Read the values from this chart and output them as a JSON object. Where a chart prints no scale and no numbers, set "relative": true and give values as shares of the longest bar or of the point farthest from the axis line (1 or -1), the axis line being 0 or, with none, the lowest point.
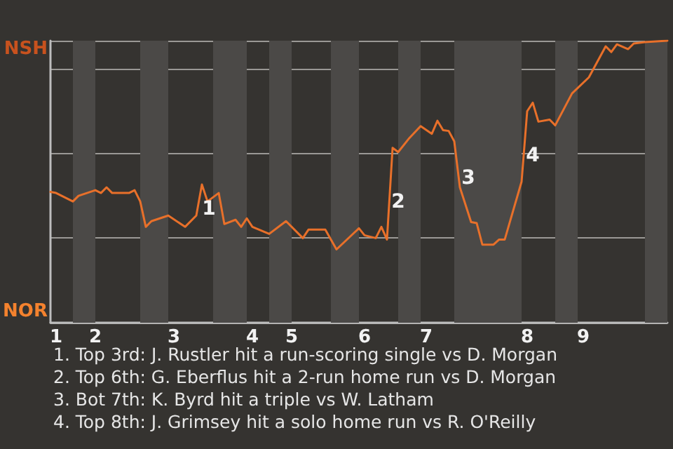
{
  "chart_data": {
    "type": "line",
    "color": "#e8702a",
    "relative": true,
    "categories": [
      null,
      "1",
      null,
      null,
      null,
      null,
      null,
      null,
      "2",
      null,
      null,
      null,
      null,
      null,
      null,
      null,
      null,
      null,
      null,
      null,
      null,
      null,
      "3",
      null,
      null,
      null,
      null,
      null,
      null,
      null,
      null,
      null,
      null,
      null,
      null,
      null,
      "4",
      null,
      null,
      null,
      null,
      null,
      null,
      "5",
      null,
      null,
      null,
      null,
      null,
      null,
      null,
      null,
      null,
      null,
      null,
      null,
      "6",
      null,
      null,
      null,
      null,
      null,
      null,
      null,
      null,
      null,
      null,
      "7",
      null,
      null,
      null,
      null,
      null,
      null,
      null,
      null,
      null,
      null,
      null,
      null,
      null,
      null,
      null,
      null,
      null,
      "8",
      null,
      null,
      null,
      null,
      null,
      null,
      null,
      null,
      null,
      "9",
      null,
      null,
      null,
      null,
      null,
      null,
      null,
      null,
      null,
      null,
      null,
      null,
      null,
      null,
      null
    ],
    "values": [
      0.464,
      0.46,
      null,
      0.44,
      0.43,
      0.45,
      null,
      null,
      0.47,
      0.46,
      0.48,
      0.46,
      null,
      null,
      0.46,
      0.47,
      0.43,
      0.34,
      0.36,
      null,
      null,
      0.38,
      null,
      null,
      0.34,
      null,
      0.38,
      0.49,
      0.43,
      null,
      0.46,
      0.35,
      null,
      0.365,
      0.34,
      0.37,
      0.34,
      null,
      null,
      0.315,
      null,
      null,
      0.36,
      null,
      null,
      0.3,
      0.33,
      null,
      null,
      0.33,
      null,
      0.26,
      null,
      null,
      null,
      0.335,
      0.31,
      null,
      0.3,
      0.34,
      0.295,
      0.62,
      0.605,
      null,
      0.655,
      null,
      0.697,
      null,
      0.67,
      0.716,
      0.683,
      0.68,
      0.643,
      0.48,
      null,
      0.357,
      0.353,
      0.277,
      null,
      0.277,
      0.295,
      0.295,
      null,
      null,
      0.5,
      0.75,
      0.78,
      0.713,
      null,
      0.72,
      0.7,
      null,
      null,
      0.813,
      null,
      null,
      0.87,
      null,
      null,
      0.98,
      0.96,
      0.987,
      null,
      0.97,
      0.99,
      null,
      0.995,
      null,
      null,
      null,
      1
    ],
    "grid": "y",
    "marker": "none",
    "line_style": "solid",
    "annotations": [
      "NSH",
      "NOR",
      "1",
      "2",
      "3",
      "4",
      "1. Top 3rd: J. Rustler hit a run-scoring single vs D. Morgan",
      "2. Top 6th: G. Eberflus hit a 2-run home run vs D. Morgan",
      "3. Bot 7th: K. Byrd hit a triple vs W. Latham",
      "4. Top 8th: J. Grimsey hit a solo home run vs R. O'Reilly"
    ]
  }
}
